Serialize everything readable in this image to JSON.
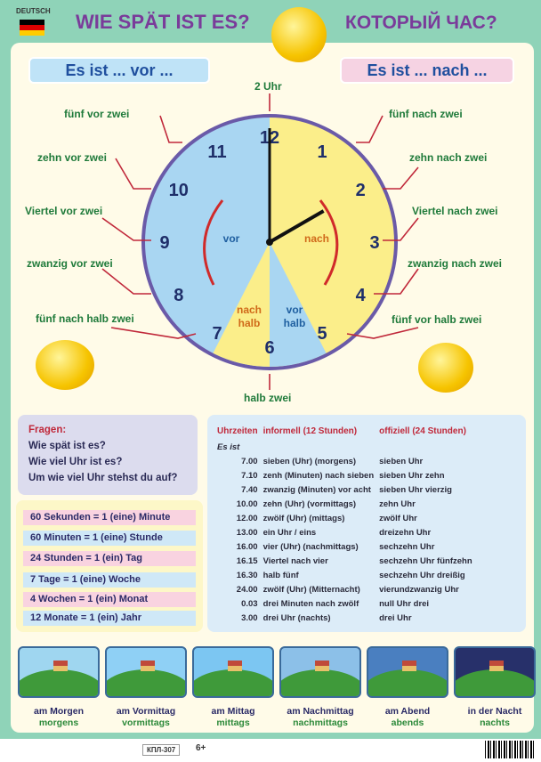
{
  "header": {
    "language_tag": "DEUTSCH",
    "title_de": "WIE SPÄT IST ES?",
    "title_ru": "КОТОРЫЙ ЧАС?"
  },
  "pills": {
    "left": "Es ist ... vor ...",
    "right": "Es ist ... nach ..."
  },
  "clock": {
    "numbers": [
      "12",
      "1",
      "2",
      "3",
      "4",
      "5",
      "6",
      "7",
      "8",
      "9",
      "10",
      "11"
    ],
    "sector_left": "vor",
    "sector_right": "nach",
    "wedge_nach_halb": "nach halb",
    "wedge_vor_halb": "vor halb",
    "colors": {
      "vor": "#a9d6f2",
      "nach": "#fbee8a",
      "rim": "#6a5aa8"
    },
    "time_shown": "2 Uhr"
  },
  "labels": {
    "top": "2 Uhr",
    "bottom": "halb zwei",
    "left": [
      "fünf vor zwei",
      "zehn vor zwei",
      "Viertel vor zwei",
      "zwanzig vor zwei",
      "fünf nach halb zwei"
    ],
    "right": [
      "fünf nach zwei",
      "zehn nach zwei",
      "Viertel nach zwei",
      "zwanzig nach zwei",
      "fünf vor halb zwei"
    ]
  },
  "questions": {
    "title": "Fragen:",
    "items": [
      "Wie spät ist es?",
      "Wie viel Uhr ist es?",
      "Um wie viel Uhr stehst du auf?"
    ]
  },
  "units": [
    "60 Sekunden = 1 (eine) Minute",
    "60 Minuten = 1 (eine) Stunde",
    "24 Stunden = 1 (ein) Tag",
    "7 Tage = 1 (eine) Woche",
    "4 Wochen = 1 (ein) Monat",
    "12 Monate = 1 (ein) Jahr"
  ],
  "table": {
    "headers": [
      "Uhrzeiten",
      "informell (12 Stunden)",
      "offiziell (24 Stunden)"
    ],
    "prefix": "Es ist",
    "rows": [
      [
        "7.00",
        "sieben (Uhr)  (morgens)",
        "sieben Uhr"
      ],
      [
        "7.10",
        "zenh (Minuten) nach sieben",
        "sieben Uhr zehn"
      ],
      [
        "7.40",
        "zwanzig (Minuten) vor acht",
        "sieben Uhr vierzig"
      ],
      [
        "10.00",
        "zehn (Uhr)  (vormittags)",
        "zehn Uhr"
      ],
      [
        "12.00",
        "zwölf (Uhr)  (mittags)",
        "zwölf Uhr"
      ],
      [
        "13.00",
        "ein Uhr / eins",
        "dreizehn Uhr"
      ],
      [
        "16.00",
        "vier (Uhr)  (nachmittags)",
        "sechzehn Uhr"
      ],
      [
        "16.15",
        "Viertel nach vier",
        "sechzehn Uhr fünfzehn"
      ],
      [
        "16.30",
        "halb fünf",
        "sechzehn Uhr dreißig"
      ],
      [
        "24.00",
        "zwölf (Uhr)  (Mitternacht)",
        "vierundzwanzig Uhr"
      ],
      [
        "0.03",
        "drei Minuten nach zwölf",
        "null Uhr drei"
      ],
      [
        "3.00",
        "drei Uhr  (nachts)",
        "drei Uhr"
      ]
    ]
  },
  "times_of_day": [
    {
      "a": "am Morgen",
      "b": "morgens",
      "sky": "#9fd6f0"
    },
    {
      "a": "am Vormittag",
      "b": "vormittags",
      "sky": "#8fd0f5"
    },
    {
      "a": "am Mittag",
      "b": "mittags",
      "sky": "#7cc6f2"
    },
    {
      "a": "am Nachmittag",
      "b": "nachmittags",
      "sky": "#8cc0e8"
    },
    {
      "a": "am Abend",
      "b": "abends",
      "sky": "#4a7fc0"
    },
    {
      "a": "in der Nacht",
      "b": "nachts",
      "sky": "#27306a"
    }
  ],
  "footer": {
    "code": "КПЛ-307",
    "age": "6+"
  }
}
